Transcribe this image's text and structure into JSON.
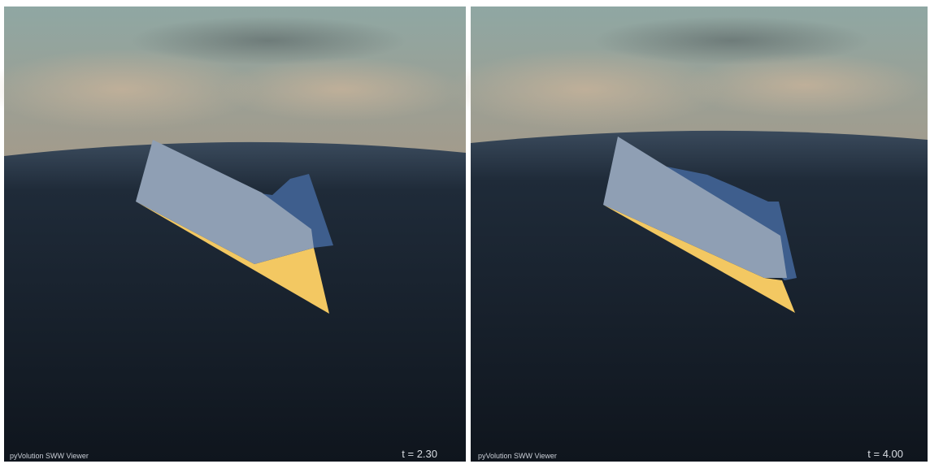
{
  "panels": [
    {
      "caption": "pyVolution SWW Viewer",
      "time_label": "t = 2.30"
    },
    {
      "caption": "pyVolution SWW Viewer",
      "time_label": "t = 4.00"
    }
  ]
}
